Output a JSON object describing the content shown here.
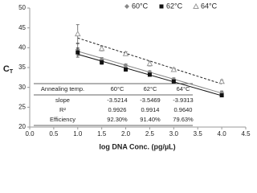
{
  "chart_data": {
    "type": "scatter",
    "x_label": "log DNA Conc. (pg/µL)",
    "y_label": "C",
    "y_label_subscript": "T",
    "x": [
      1.0,
      1.5,
      2.0,
      2.5,
      3.0,
      4.0
    ],
    "series": [
      {
        "name": "60°C",
        "color": "#888888",
        "marker": "diamond",
        "line": "solid",
        "values": [
          39.5,
          37.0,
          35.5,
          33.8,
          32.0,
          28.7
        ],
        "errors": [
          1.5,
          0.5,
          0.4,
          0.4,
          0.4,
          0.4
        ]
      },
      {
        "name": "62°C",
        "color": "#111111",
        "marker": "square",
        "line": "solid",
        "values": [
          38.8,
          36.3,
          34.5,
          33.2,
          31.5,
          28.0
        ],
        "errors": [
          1.2,
          0.5,
          0.4,
          0.4,
          0.3,
          0.3
        ]
      },
      {
        "name": "64°C",
        "color": "#999999",
        "marker": "triangle",
        "line": "dashed",
        "values": [
          43.5,
          39.8,
          38.5,
          36.0,
          34.5,
          31.5
        ],
        "errors": [
          2.3,
          0.6,
          0.5,
          0.6,
          0.4,
          0.4
        ]
      }
    ],
    "xlim": [
      0,
      4.5
    ],
    "xticks": [
      {
        "value": 0,
        "label": "0.0"
      },
      {
        "value": 0.5,
        "label": "0.5"
      },
      {
        "value": 1,
        "label": "1.0"
      },
      {
        "value": 1.5,
        "label": "1.5"
      },
      {
        "value": 2,
        "label": "2.0"
      },
      {
        "value": 2.5,
        "label": "2.5"
      },
      {
        "value": 3,
        "label": "3.0"
      },
      {
        "value": 3.5,
        "label": "3.5"
      },
      {
        "value": 4,
        "label": "4.0"
      },
      {
        "value": 4.5,
        "label": "4.5"
      }
    ],
    "ylim": [
      20,
      50
    ],
    "yticks": [
      20,
      25,
      30,
      35,
      40,
      45,
      50
    ],
    "table": {
      "rows": [
        [
          "Annealing temp.",
          "60°C",
          "62°C",
          "64°C"
        ],
        [
          "slope",
          "-3.5214",
          "-3.5469",
          "-3.9313"
        ],
        [
          "R²",
          "0.9926",
          "0.9914",
          "0.9640"
        ],
        [
          "Efficiency",
          "92.30%",
          "91.40%",
          "79.63%"
        ]
      ]
    }
  }
}
